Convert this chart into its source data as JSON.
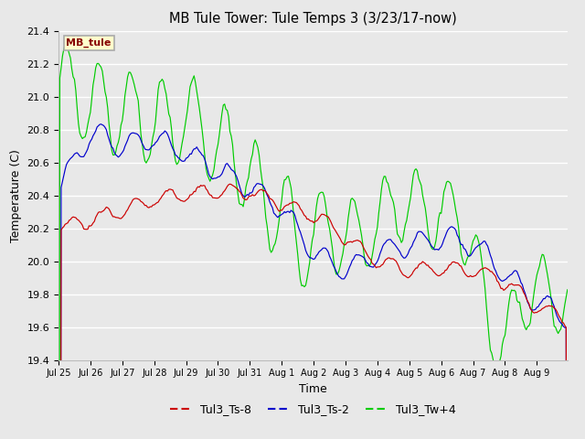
{
  "title": "MB Tule Tower: Tule Temps 3 (3/23/17-now)",
  "xlabel": "Time",
  "ylabel": "Temperature (C)",
  "ylim": [
    19.4,
    21.4
  ],
  "background_color": "#e8e8e8",
  "plot_bg_color": "#e8e8e8",
  "grid_color": "#ffffff",
  "legend_label": "MB_tule",
  "legend_box_color": "#ffffcc",
  "legend_box_edge": "#aaaaaa",
  "series": {
    "Tul3_Ts-8": {
      "color": "#cc0000"
    },
    "Tul3_Ts-2": {
      "color": "#0000cc"
    },
    "Tul3_Tw+4": {
      "color": "#00cc00"
    }
  },
  "xtick_labels": [
    "Jul 25",
    "Jul 26",
    "Jul 27",
    "Jul 28",
    "Jul 29",
    "Jul 30",
    "Jul 31",
    "Aug 1",
    "Aug 2",
    "Aug 3",
    "Aug 4",
    "Aug 5",
    "Aug 6",
    "Aug 7",
    "Aug 8",
    "Aug 9"
  ],
  "ytick_values": [
    19.4,
    19.6,
    19.8,
    20.0,
    20.2,
    20.4,
    20.6,
    20.8,
    21.0,
    21.2,
    21.4
  ]
}
